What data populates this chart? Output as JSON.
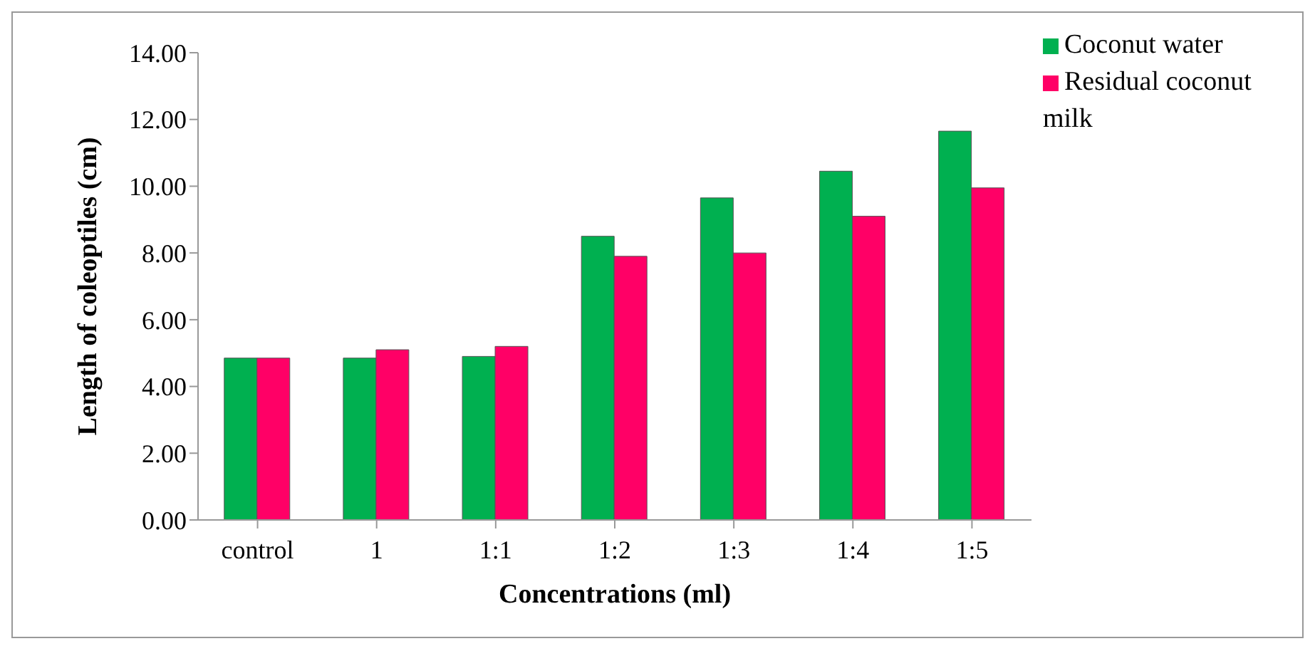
{
  "chart_data": {
    "type": "bar",
    "xlabel": "Concentrations (ml)",
    "ylabel": "Length of coleoptiles (cm)",
    "categories": [
      "control",
      "1",
      "1:1",
      "1:2",
      "1:3",
      "1:4",
      "1:5"
    ],
    "series": [
      {
        "name": "Coconut water",
        "color": "#00b050",
        "values": [
          4.85,
          4.85,
          4.9,
          8.5,
          9.65,
          10.45,
          11.65
        ]
      },
      {
        "name": "Residual coconut milk",
        "color": "#ff0066",
        "values": [
          4.85,
          5.1,
          5.2,
          7.9,
          8.0,
          9.1,
          9.95
        ]
      }
    ],
    "ylim": [
      0,
      14
    ],
    "yticks": [
      {
        "value": 0,
        "label": "0.00"
      },
      {
        "value": 2,
        "label": "2.00"
      },
      {
        "value": 4,
        "label": "4.00"
      },
      {
        "value": 6,
        "label": "6.00"
      },
      {
        "value": 8,
        "label": "8.00"
      },
      {
        "value": 10,
        "label": "10.00"
      },
      {
        "value": 12,
        "label": "12.00"
      },
      {
        "value": 14,
        "label": "14.00"
      }
    ],
    "grid": false,
    "legend": "top right"
  }
}
